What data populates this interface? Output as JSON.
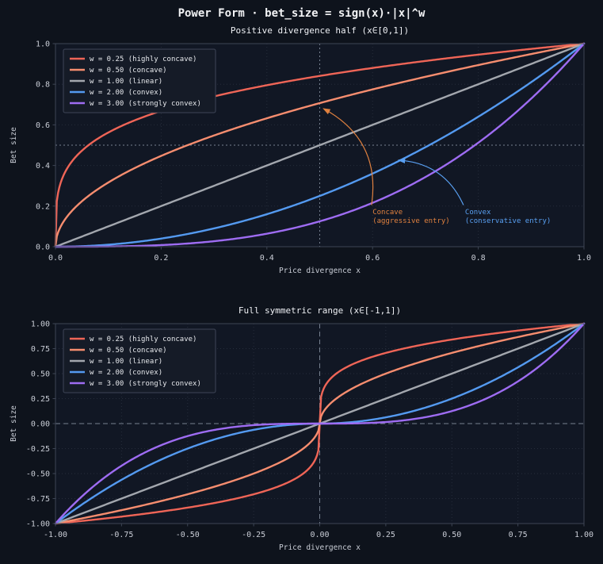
{
  "figure": {
    "title": "Power Form · bet_size = sign(x)·|x|^w"
  },
  "colors": {
    "background": "#0e131c",
    "axes_bg": "#111724",
    "grid": "#262d3b",
    "spine": "#3d4554",
    "tick_text": "#c9cdd6",
    "title_text": "#eef0f4",
    "ref_line": "#76808f",
    "legend_bg": "#151b27",
    "legend_border": "#3e4657",
    "legend_text": "#e6e8ec"
  },
  "chart_data": [
    {
      "type": "line",
      "title": "Positive divergence half (x∈[0,1])",
      "xlabel": "Price divergence x",
      "ylabel": "Bet size",
      "function": "bet_size = sign(x)·|x|^w",
      "xlim": [
        0,
        1
      ],
      "ylim": [
        0,
        1
      ],
      "xticks": [
        0,
        0.2,
        0.4,
        0.6,
        0.8,
        1.0
      ],
      "xtick_labels": [
        "0.0",
        "0.2",
        "0.4",
        "0.6",
        "0.8",
        "1.0"
      ],
      "yticks": [
        0,
        0.2,
        0.4,
        0.6,
        0.8,
        1.0
      ],
      "ytick_labels": [
        "0.0",
        "0.2",
        "0.4",
        "0.6",
        "0.8",
        "1.0"
      ],
      "grid": true,
      "legend_position": "upper left",
      "series": [
        {
          "label": "w = 0.25 (highly concave)",
          "w": 0.25,
          "color": "#ef6557"
        },
        {
          "label": "w = 0.50 (concave)",
          "w": 0.5,
          "color": "#f68d6f"
        },
        {
          "label": "w = 1.00 (linear)",
          "w": 1,
          "color": "#a3a7ae"
        },
        {
          "label": "w = 2.00 (convex)",
          "w": 2,
          "color": "#549af0"
        },
        {
          "label": "w = 3.00 (strongly convex)",
          "w": 3,
          "color": "#9e6cf2"
        }
      ],
      "ref_lines": [
        {
          "axis": "h",
          "value": 0.5,
          "dash": "dotted"
        },
        {
          "axis": "v",
          "value": 0.5,
          "dash": "dotted"
        }
      ],
      "annotations": [
        {
          "lines": [
            "Concave",
            "(aggressive entry)"
          ],
          "color": "#e0813f",
          "text_xy": [
            0.6,
            0.16
          ],
          "arrow_from": [
            0.598,
            0.205
          ],
          "arrow_to": [
            0.507,
            0.68
          ],
          "rad": 0.35
        },
        {
          "lines": [
            "Convex",
            "(conservative entry)"
          ],
          "color": "#59a0f2",
          "text_xy": [
            0.775,
            0.16
          ],
          "arrow_from": [
            0.772,
            0.205
          ],
          "arrow_to": [
            0.649,
            0.426
          ],
          "rad": 0.3
        }
      ]
    },
    {
      "type": "line",
      "title": "Full symmetric range (x∈[-1,1])",
      "xlabel": "Price divergence x",
      "ylabel": "Bet size",
      "function": "bet_size = sign(x)·|x|^w",
      "xlim": [
        -1,
        1
      ],
      "ylim": [
        -1,
        1
      ],
      "xticks": [
        -1,
        -0.75,
        -0.5,
        -0.25,
        0,
        0.25,
        0.5,
        0.75,
        1
      ],
      "xtick_labels": [
        "-1.00",
        "-0.75",
        "-0.50",
        "-0.25",
        "0.00",
        "0.25",
        "0.50",
        "0.75",
        "1.00"
      ],
      "yticks": [
        -1,
        -0.75,
        -0.5,
        -0.25,
        0,
        0.25,
        0.5,
        0.75,
        1
      ],
      "ytick_labels": [
        "-1.00",
        "-0.75",
        "-0.50",
        "-0.25",
        "0.00",
        "0.25",
        "0.50",
        "0.75",
        "1.00"
      ],
      "grid": true,
      "legend_position": "upper left",
      "series": [
        {
          "label": "w = 0.25 (highly concave)",
          "w": 0.25,
          "color": "#ef6557"
        },
        {
          "label": "w = 0.50 (concave)",
          "w": 0.5,
          "color": "#f68d6f"
        },
        {
          "label": "w = 1.00 (linear)",
          "w": 1,
          "color": "#a3a7ae"
        },
        {
          "label": "w = 2.00 (convex)",
          "w": 2,
          "color": "#549af0"
        },
        {
          "label": "w = 3.00 (strongly convex)",
          "w": 3,
          "color": "#9e6cf2"
        }
      ],
      "ref_lines": [
        {
          "axis": "h",
          "value": 0,
          "dash": "dashed"
        },
        {
          "axis": "v",
          "value": 0,
          "dash": "dashed"
        }
      ],
      "annotations": []
    }
  ]
}
